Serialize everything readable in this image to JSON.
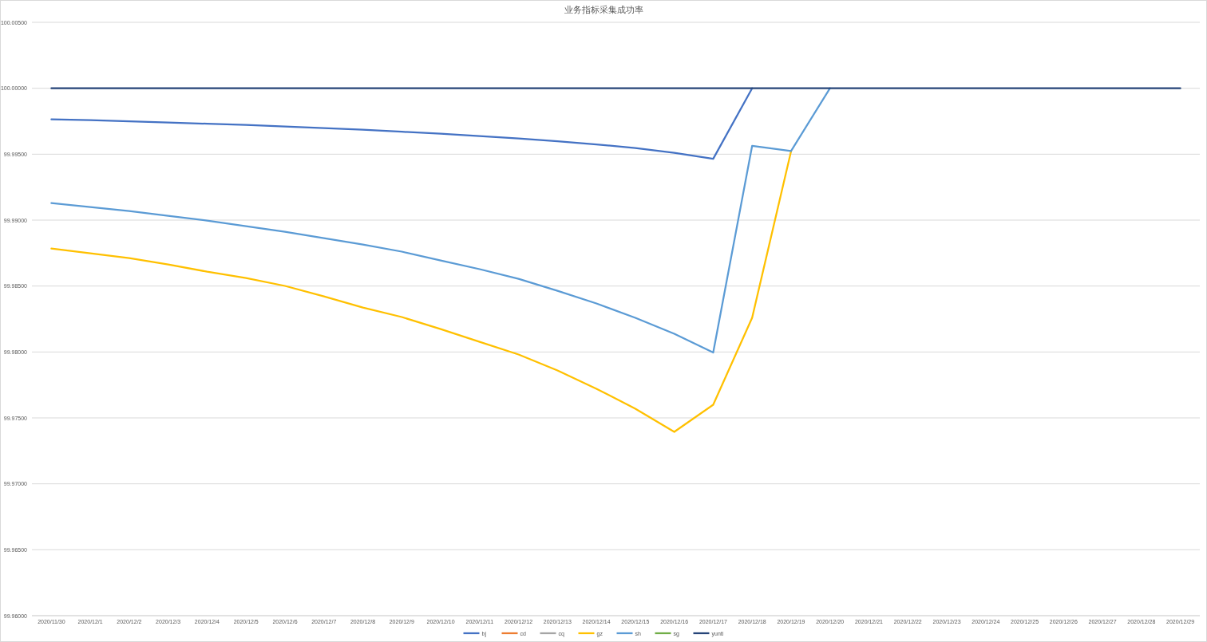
{
  "chart_data": {
    "type": "line",
    "title": "业务指标采集成功率",
    "categories": [
      "2020/11/30",
      "2020/12/1",
      "2020/12/2",
      "2020/12/3",
      "2020/12/4",
      "2020/12/5",
      "2020/12/6",
      "2020/12/7",
      "2020/12/8",
      "2020/12/9",
      "2020/12/10",
      "2020/12/11",
      "2020/12/12",
      "2020/12/13",
      "2020/12/14",
      "2020/12/15",
      "2020/12/16",
      "2020/12/17",
      "2020/12/18",
      "2020/12/19",
      "2020/12/20",
      "2020/12/21",
      "2020/12/22",
      "2020/12/23",
      "2020/12/24",
      "2020/12/25",
      "2020/12/26",
      "2020/12/27",
      "2020/12/28",
      "2020/12/29"
    ],
    "series": [
      {
        "name": "bj",
        "color": "#4472c4",
        "values": [
          99.99764,
          99.99758,
          99.99749,
          99.9974,
          99.99731,
          99.99722,
          99.9971,
          99.99698,
          99.99686,
          99.9967,
          99.99655,
          99.99637,
          99.99619,
          99.99598,
          99.99574,
          99.99547,
          99.9951,
          99.99465,
          100,
          null,
          null,
          null,
          null,
          null,
          null,
          null,
          null,
          null,
          null,
          null
        ]
      },
      {
        "name": "cd",
        "color": "#ed7d31",
        "values": [
          null,
          null,
          null,
          null,
          null,
          null,
          null,
          null,
          null,
          null,
          null,
          null,
          null,
          null,
          null,
          null,
          null,
          null,
          null,
          null,
          null,
          null,
          null,
          null,
          null,
          null,
          null,
          null,
          null,
          null
        ]
      },
      {
        "name": "cq",
        "color": "#a5a5a5",
        "values": [
          null,
          null,
          null,
          null,
          null,
          null,
          null,
          null,
          null,
          null,
          null,
          null,
          null,
          null,
          null,
          null,
          null,
          null,
          null,
          null,
          null,
          null,
          null,
          null,
          null,
          null,
          null,
          null,
          null,
          null
        ]
      },
      {
        "name": "gz",
        "color": "#ffc000",
        "values": [
          99.98785,
          99.98748,
          99.98712,
          99.98664,
          99.98609,
          99.98561,
          99.98501,
          99.98422,
          99.98337,
          99.98265,
          99.98174,
          99.98077,
          99.97981,
          99.9786,
          99.97721,
          99.9757,
          99.97394,
          99.976,
          99.98259,
          99.99522,
          null,
          null,
          null,
          null,
          null,
          null,
          null,
          null,
          null,
          null
        ]
      },
      {
        "name": "sh",
        "color": "#5b9bd5",
        "values": [
          99.99129,
          99.99099,
          99.99069,
          99.99033,
          99.98996,
          99.98954,
          99.98912,
          99.98863,
          99.98815,
          99.98761,
          99.98694,
          99.98628,
          99.98555,
          99.98464,
          99.98368,
          99.98259,
          99.98138,
          99.97996,
          99.99563,
          99.99524,
          100,
          null,
          null,
          null,
          null,
          null,
          null,
          null,
          null,
          null
        ]
      },
      {
        "name": "sg",
        "color": "#70ad47",
        "values": [
          null,
          null,
          null,
          null,
          null,
          null,
          null,
          null,
          null,
          null,
          null,
          null,
          null,
          null,
          null,
          null,
          null,
          null,
          null,
          null,
          null,
          null,
          null,
          null,
          null,
          null,
          null,
          null,
          null,
          null
        ]
      },
      {
        "name": "yunti",
        "color": "#264478",
        "values": [
          100,
          100,
          100,
          100,
          100,
          100,
          100,
          100,
          100,
          100,
          100,
          100,
          100,
          100,
          100,
          100,
          100,
          100,
          100,
          100,
          100,
          100,
          100,
          100,
          100,
          100,
          100,
          100,
          100,
          100
        ]
      }
    ],
    "ylim": [
      99.96,
      100.005
    ],
    "yticks": [
      {
        "value": 99.96,
        "label": "99.96000"
      },
      {
        "value": 99.965,
        "label": "99.96500"
      },
      {
        "value": 99.97,
        "label": "99.97000"
      },
      {
        "value": 99.975,
        "label": "99.97500"
      },
      {
        "value": 99.98,
        "label": "99.98000"
      },
      {
        "value": 99.985,
        "label": "99.98500"
      },
      {
        "value": 99.99,
        "label": "99.99000"
      },
      {
        "value": 99.995,
        "label": "99.99500"
      },
      {
        "value": 100,
        "label": "100.00000"
      },
      {
        "value": 100.005,
        "label": "100.00500"
      }
    ],
    "grid": "y",
    "legend": "bottom",
    "marker": "none",
    "line_style": "solid"
  }
}
